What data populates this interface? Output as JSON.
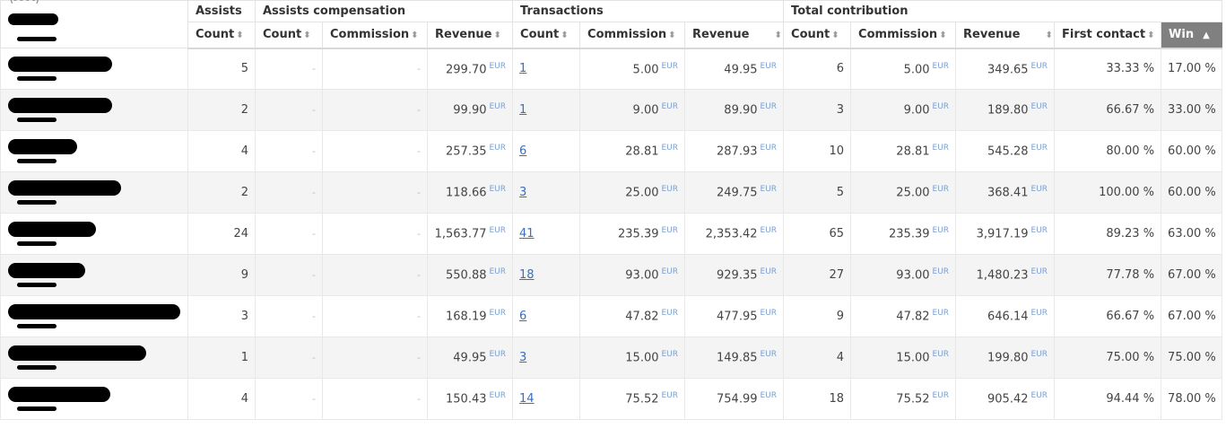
{
  "header": {
    "groups": {
      "assists": "Assists",
      "assists_compensation": "Assists compensation",
      "transactions": "Transactions",
      "total_contribution": "Total contribution"
    },
    "columns": {
      "assists_count": "Count",
      "comp_count": "Count",
      "comp_commission": "Commission",
      "comp_revenue": "Revenue",
      "trans_count": "Count",
      "trans_commission": "Commission",
      "trans_revenue": "Revenue",
      "total_count": "Count",
      "total_commission": "Commission",
      "total_revenue": "Revenue",
      "first_contact": "First contact",
      "win": "Win"
    },
    "corner_text": "(- - - -)"
  },
  "currency": "EUR",
  "dash": "-",
  "rows": [
    {
      "redacted_width": 116,
      "assists_count": "5",
      "comp_count": "-",
      "comp_commission": "-",
      "comp_revenue": "299.70",
      "trans_count": "1",
      "trans_commission": "5.00",
      "trans_revenue": "49.95",
      "total_count": "6",
      "total_commission": "5.00",
      "total_revenue": "349.65",
      "first_contact": "33.33 %",
      "win": "17.00 %"
    },
    {
      "redacted_width": 116,
      "assists_count": "2",
      "comp_count": "-",
      "comp_commission": "-",
      "comp_revenue": "99.90",
      "trans_count": "1",
      "trans_commission": "9.00",
      "trans_revenue": "89.90",
      "total_count": "3",
      "total_commission": "9.00",
      "total_revenue": "189.80",
      "first_contact": "66.67 %",
      "win": "33.00 %"
    },
    {
      "redacted_width": 77,
      "assists_count": "4",
      "comp_count": "-",
      "comp_commission": "-",
      "comp_revenue": "257.35",
      "trans_count": "6",
      "trans_commission": "28.81",
      "trans_revenue": "287.93",
      "total_count": "10",
      "total_commission": "28.81",
      "total_revenue": "545.28",
      "first_contact": "80.00 %",
      "win": "60.00 %"
    },
    {
      "redacted_width": 126,
      "assists_count": "2",
      "comp_count": "-",
      "comp_commission": "-",
      "comp_revenue": "118.66",
      "trans_count": "3",
      "trans_commission": "25.00",
      "trans_revenue": "249.75",
      "total_count": "5",
      "total_commission": "25.00",
      "total_revenue": "368.41",
      "first_contact": "100.00 %",
      "win": "60.00 %"
    },
    {
      "redacted_width": 98,
      "assists_count": "24",
      "comp_count": "-",
      "comp_commission": "-",
      "comp_revenue": "1,563.77",
      "trans_count": "41",
      "trans_commission": "235.39",
      "trans_revenue": "2,353.42",
      "total_count": "65",
      "total_commission": "235.39",
      "total_revenue": "3,917.19",
      "first_contact": "89.23 %",
      "win": "63.00 %"
    },
    {
      "redacted_width": 86,
      "assists_count": "9",
      "comp_count": "-",
      "comp_commission": "-",
      "comp_revenue": "550.88",
      "trans_count": "18",
      "trans_commission": "93.00",
      "trans_revenue": "929.35",
      "total_count": "27",
      "total_commission": "93.00",
      "total_revenue": "1,480.23",
      "first_contact": "77.78 %",
      "win": "67.00 %"
    },
    {
      "redacted_width": 192,
      "assists_count": "3",
      "comp_count": "-",
      "comp_commission": "-",
      "comp_revenue": "168.19",
      "trans_count": "6",
      "trans_commission": "47.82",
      "trans_revenue": "477.95",
      "total_count": "9",
      "total_commission": "47.82",
      "total_revenue": "646.14",
      "first_contact": "66.67 %",
      "win": "67.00 %"
    },
    {
      "redacted_width": 154,
      "assists_count": "1",
      "comp_count": "-",
      "comp_commission": "-",
      "comp_revenue": "49.95",
      "trans_count": "3",
      "trans_commission": "15.00",
      "trans_revenue": "149.85",
      "total_count": "4",
      "total_commission": "15.00",
      "total_revenue": "199.80",
      "first_contact": "75.00 %",
      "win": "75.00 %"
    },
    {
      "redacted_width": 114,
      "assists_count": "4",
      "comp_count": "-",
      "comp_commission": "-",
      "comp_revenue": "150.43",
      "trans_count": "14",
      "trans_commission": "75.52",
      "trans_revenue": "754.99",
      "total_count": "18",
      "total_commission": "75.52",
      "total_revenue": "905.42",
      "first_contact": "94.44 %",
      "win": "78.00 %"
    }
  ]
}
